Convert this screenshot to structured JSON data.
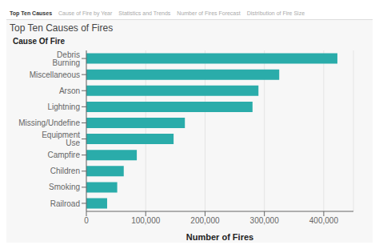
{
  "chart_data": {
    "type": "bar",
    "orientation": "horizontal",
    "title": "Top Ten Causes of Fires",
    "x_label": "Number of Fires",
    "y_label": "Cause Of Fire",
    "categories": [
      "Railroad",
      "Smoking",
      "Children",
      "Campfire",
      "Equipment Use",
      "Missing/Undefine",
      "Lightning",
      "Arson",
      "Miscellaneous",
      "Debris Burning"
    ],
    "values": [
      35000,
      52000,
      63000,
      85000,
      147000,
      166000,
      280000,
      290000,
      325000,
      423000
    ],
    "color": "#2aacaa",
    "xlim": [
      0,
      450000
    ],
    "xticks": [
      0,
      {
        "value": 100000,
        "label": "100,000"
      },
      {
        "value": 200000,
        "label": "200,000"
      },
      {
        "value": 300000,
        "label": "300,000"
      },
      {
        "value": 400000,
        "label": "400,000"
      }
    ],
    "grid": true,
    "tabs": [
      "Top Ten Causes",
      "Cause of Fire by Year",
      "Statistics and Trends",
      "Number of Fires Forecast",
      "Distribution of Fire Size"
    ],
    "active_tab": "Top Ten Causes"
  }
}
